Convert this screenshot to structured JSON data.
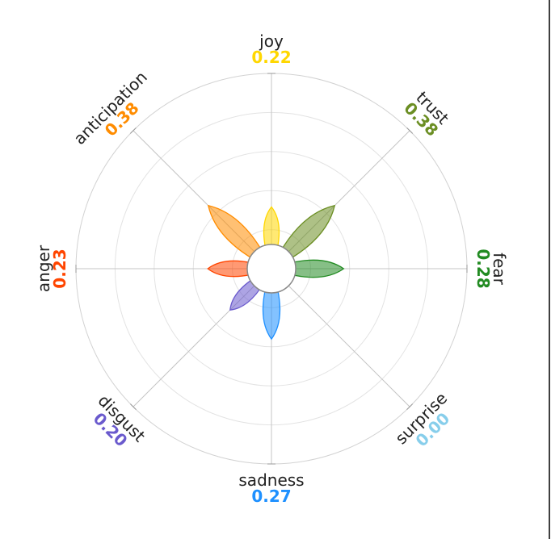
{
  "chart_data": {
    "type": "polar-area",
    "categories": [
      "joy",
      "trust",
      "fear",
      "surprise",
      "sadness",
      "disgust",
      "anger",
      "anticipation"
    ],
    "values": [
      0.22,
      0.38,
      0.28,
      0.0,
      0.27,
      0.2,
      0.23,
      0.38
    ],
    "value_labels": [
      "0.22",
      "0.38",
      "0.28",
      "0.00",
      "0.27",
      "0.20",
      "0.23",
      "0.38"
    ],
    "colors": [
      "#FFD700",
      "#6B8E23",
      "#228B22",
      "#87CEEB",
      "#1E90FF",
      "#6A5ACD",
      "#FF4500",
      "#FF8C00"
    ],
    "rlim": [
      0,
      1
    ],
    "grid": true
  }
}
